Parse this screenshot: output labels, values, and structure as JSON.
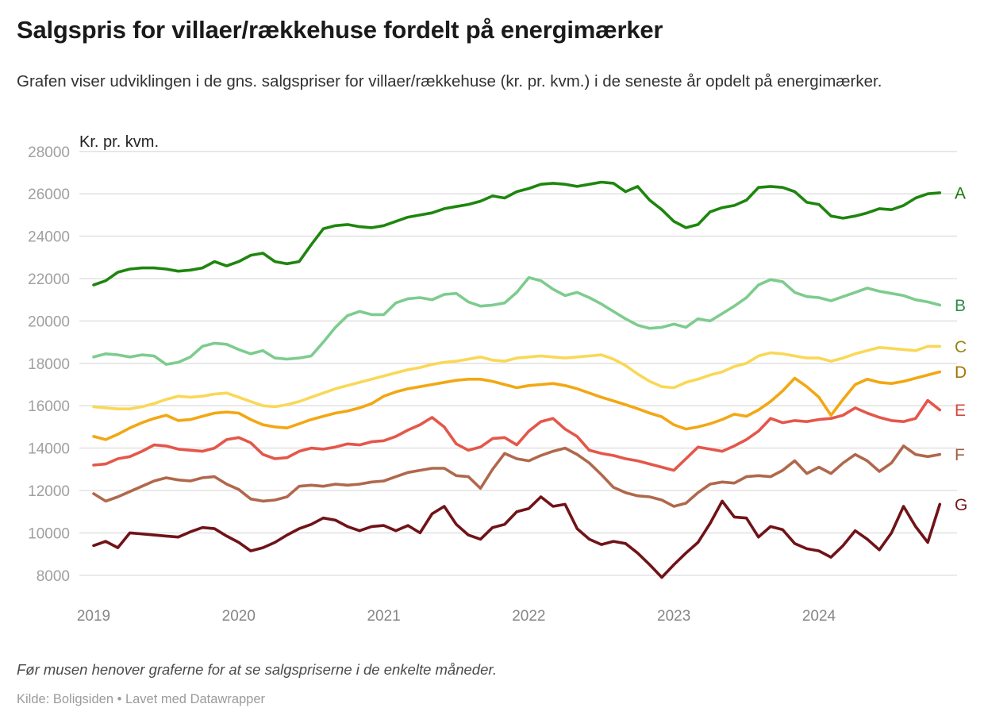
{
  "header": {
    "title": "Salgspris for villaer/rækkehuse fordelt på energimærker",
    "subtitle": "Grafen viser udviklingen i de gns. salgspriser for villaer/rækkehuse (kr. pr. kvm.) i de seneste år opdelt på energimærker."
  },
  "footer": {
    "note": "Før musen henover graferne for at se salgspriserne i de enkelte måneder.",
    "source": "Kilde: Boligsiden • Lavet med Datawrapper"
  },
  "chart_data": {
    "type": "line",
    "title": "Salgspris for villaer/rækkehuse fordelt på energimærker",
    "ylabel": "Kr. pr. kvm.",
    "xlabel": "",
    "ylim": [
      8000,
      28000
    ],
    "grid": "horizontal",
    "legend_position": "line-end-right",
    "x_monthly_start": "2019-01",
    "x_monthly_end": "2024-11",
    "y_ticks": [
      28000,
      26000,
      24000,
      22000,
      20000,
      18000,
      16000,
      14000,
      12000,
      10000,
      8000
    ],
    "x_ticks": [
      {
        "label": "2019",
        "month_index": 0
      },
      {
        "label": "2020",
        "month_index": 12
      },
      {
        "label": "2021",
        "month_index": 24
      },
      {
        "label": "2022",
        "month_index": 36
      },
      {
        "label": "2023",
        "month_index": 48
      },
      {
        "label": "2024",
        "month_index": 60
      }
    ],
    "series": [
      {
        "name": "A",
        "color": "#1e860e",
        "label_color": "#187a0a",
        "values": [
          21700,
          21900,
          22300,
          22450,
          22500,
          22500,
          22450,
          22350,
          22400,
          22500,
          22800,
          22600,
          22800,
          23100,
          23200,
          22800,
          22700,
          22800,
          23600,
          24350,
          24500,
          24550,
          24450,
          24400,
          24500,
          24700,
          24900,
          25000,
          25100,
          25300,
          25400,
          25500,
          25650,
          25900,
          25800,
          26100,
          26250,
          26450,
          26500,
          26450,
          26350,
          26450,
          26550,
          26500,
          26100,
          26350,
          25700,
          25250,
          24700,
          24400,
          24550,
          25150,
          25350,
          25450,
          25700,
          26300,
          26350,
          26300,
          26100,
          25600,
          25500,
          24950,
          24850,
          24950,
          25100,
          25300,
          25250,
          25450,
          25800,
          26000,
          26050
        ]
      },
      {
        "name": "B",
        "color": "#7dcc8e",
        "label_color": "#2c8c4a",
        "values": [
          18300,
          18450,
          18400,
          18300,
          18400,
          18350,
          17950,
          18050,
          18300,
          18800,
          18950,
          18900,
          18650,
          18450,
          18600,
          18250,
          18200,
          18250,
          18350,
          19000,
          19700,
          20250,
          20450,
          20300,
          20300,
          20850,
          21050,
          21100,
          21000,
          21250,
          21300,
          20900,
          20700,
          20750,
          20850,
          21350,
          22050,
          21900,
          21500,
          21200,
          21350,
          21100,
          20800,
          20450,
          20100,
          19800,
          19650,
          19700,
          19850,
          19700,
          20100,
          20000,
          20350,
          20700,
          21100,
          21700,
          21950,
          21850,
          21350,
          21150,
          21100,
          20950,
          21150,
          21350,
          21550,
          21400,
          21300,
          21200,
          21000,
          20900,
          20750
        ]
      },
      {
        "name": "C",
        "color": "#f9d857",
        "label_color": "#96850f",
        "values": [
          15950,
          15900,
          15850,
          15850,
          15950,
          16100,
          16300,
          16450,
          16400,
          16450,
          16550,
          16600,
          16400,
          16200,
          16000,
          15950,
          16050,
          16200,
          16400,
          16600,
          16800,
          16950,
          17100,
          17250,
          17400,
          17550,
          17700,
          17800,
          17950,
          18050,
          18100,
          18200,
          18300,
          18150,
          18100,
          18250,
          18300,
          18350,
          18300,
          18250,
          18300,
          18350,
          18400,
          18200,
          17900,
          17500,
          17150,
          16900,
          16850,
          17100,
          17250,
          17450,
          17600,
          17850,
          18000,
          18350,
          18500,
          18450,
          18350,
          18250,
          18250,
          18100,
          18250,
          18450,
          18600,
          18750,
          18700,
          18650,
          18600,
          18800,
          18800
        ]
      },
      {
        "name": "D",
        "color": "#f3a712",
        "label_color": "#a87203",
        "values": [
          14550,
          14400,
          14650,
          14950,
          15200,
          15400,
          15550,
          15300,
          15350,
          15500,
          15650,
          15700,
          15650,
          15350,
          15100,
          15000,
          14950,
          15150,
          15350,
          15500,
          15650,
          15750,
          15900,
          16100,
          16450,
          16650,
          16800,
          16900,
          17000,
          17100,
          17200,
          17250,
          17250,
          17150,
          17000,
          16850,
          16950,
          17000,
          17050,
          16950,
          16800,
          16600,
          16400,
          16230,
          16050,
          15860,
          15650,
          15480,
          15100,
          14900,
          15000,
          15150,
          15350,
          15600,
          15500,
          15800,
          16200,
          16700,
          17300,
          16900,
          16400,
          15550,
          16300,
          17000,
          17250,
          17100,
          17050,
          17150,
          17300,
          17450,
          17600
        ]
      },
      {
        "name": "E",
        "color": "#e4574a",
        "label_color": "#d04a3d",
        "values": [
          13200,
          13250,
          13500,
          13600,
          13850,
          14150,
          14100,
          13950,
          13900,
          13850,
          14000,
          14400,
          14500,
          14250,
          13700,
          13500,
          13550,
          13850,
          14000,
          13950,
          14050,
          14200,
          14150,
          14300,
          14350,
          14550,
          14850,
          15100,
          15450,
          15000,
          14200,
          13900,
          14050,
          14450,
          14500,
          14150,
          14800,
          15250,
          15400,
          14900,
          14550,
          13900,
          13750,
          13650,
          13500,
          13400,
          13250,
          13100,
          12950,
          13500,
          14050,
          13950,
          13850,
          14100,
          14400,
          14800,
          15400,
          15200,
          15300,
          15250,
          15350,
          15400,
          15550,
          15900,
          15650,
          15450,
          15300,
          15250,
          15400,
          16250,
          15800
        ]
      },
      {
        "name": "F",
        "color": "#b0684c",
        "label_color": "#a05c42",
        "values": [
          11850,
          11500,
          11700,
          11950,
          12200,
          12450,
          12600,
          12500,
          12450,
          12600,
          12650,
          12300,
          12050,
          11600,
          11500,
          11550,
          11700,
          12200,
          12250,
          12200,
          12300,
          12250,
          12300,
          12400,
          12450,
          12650,
          12850,
          12950,
          13050,
          13050,
          12700,
          12650,
          12100,
          13000,
          13750,
          13500,
          13400,
          13650,
          13850,
          14000,
          13700,
          13300,
          12750,
          12150,
          11900,
          11750,
          11700,
          11550,
          11250,
          11400,
          11900,
          12300,
          12400,
          12350,
          12650,
          12700,
          12650,
          12950,
          13400,
          12800,
          13100,
          12800,
          13300,
          13700,
          13400,
          12900,
          13300,
          14100,
          13700,
          13600,
          13700
        ]
      },
      {
        "name": "G",
        "color": "#701318",
        "label_color": "#77161b",
        "values": [
          9400,
          9600,
          9300,
          10000,
          9950,
          9900,
          9850,
          9800,
          10050,
          10250,
          10200,
          9850,
          9550,
          9150,
          9300,
          9550,
          9900,
          10200,
          10400,
          10700,
          10600,
          10300,
          10100,
          10300,
          10350,
          10100,
          10350,
          10000,
          10900,
          11250,
          10400,
          9900,
          9700,
          10250,
          10400,
          11000,
          11150,
          11700,
          11250,
          11350,
          10200,
          9700,
          9450,
          9600,
          9500,
          9050,
          8500,
          7900,
          8500,
          9050,
          9550,
          10450,
          11500,
          10750,
          10700,
          9800,
          10300,
          10150,
          9500,
          9250,
          9150,
          8850,
          9400,
          10100,
          9700,
          9200,
          10000,
          11250,
          10300,
          9550,
          11350
        ]
      }
    ]
  }
}
